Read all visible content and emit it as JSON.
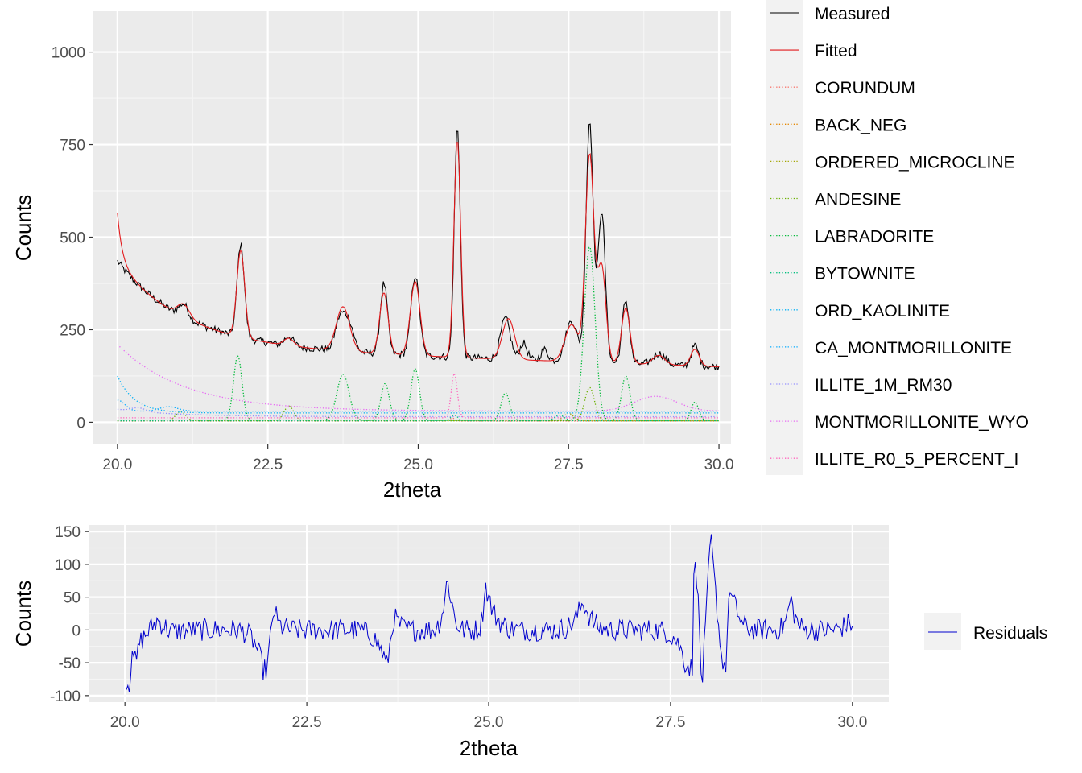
{
  "chart_data": [
    {
      "type": "line",
      "xlabel": "2theta",
      "ylabel": "Counts",
      "xlim": [
        19.6,
        30.2
      ],
      "ylim": [
        -60,
        1110
      ],
      "x_ticks": [
        20.0,
        22.5,
        25.0,
        27.5,
        30.0
      ],
      "x_tick_labels": [
        "20.0",
        "22.5",
        "25.0",
        "27.5",
        "30.0"
      ],
      "y_ticks": [
        0,
        250,
        500,
        750,
        1000
      ],
      "y_tick_labels": [
        "0",
        "250",
        "500",
        "750",
        "1000"
      ],
      "grid": true,
      "legend_position": "right",
      "x_range": [
        20.0,
        30.0
      ],
      "x_step": 0.02,
      "background": {
        "type": "decay",
        "amp": 230,
        "base": 205,
        "rate": 0.9,
        "slope": -5.5
      },
      "series": [
        {
          "name": "Measured",
          "color": "#000000",
          "style": "solid",
          "noise": 10,
          "peaks": [
            {
              "center": 21.1,
              "height": 35,
              "width": 0.08
            },
            {
              "center": 22.05,
              "height": 250,
              "width": 0.06
            },
            {
              "center": 22.85,
              "height": 25,
              "width": 0.07
            },
            {
              "center": 23.7,
              "height": 85,
              "width": 0.08
            },
            {
              "center": 23.85,
              "height": 75,
              "width": 0.08
            },
            {
              "center": 24.43,
              "height": 190,
              "width": 0.06
            },
            {
              "center": 24.95,
              "height": 215,
              "width": 0.07
            },
            {
              "center": 25.65,
              "height": 620,
              "width": 0.05
            },
            {
              "center": 26.45,
              "height": 110,
              "width": 0.08
            },
            {
              "center": 26.75,
              "height": 45,
              "width": 0.06
            },
            {
              "center": 27.1,
              "height": 30,
              "width": 0.06
            },
            {
              "center": 27.55,
              "height": 110,
              "width": 0.1
            },
            {
              "center": 27.85,
              "height": 650,
              "width": 0.06
            },
            {
              "center": 28.05,
              "height": 410,
              "width": 0.06
            },
            {
              "center": 28.45,
              "height": 170,
              "width": 0.06
            },
            {
              "center": 29.0,
              "height": 30,
              "width": 0.1
            },
            {
              "center": 29.6,
              "height": 55,
              "width": 0.06
            }
          ]
        },
        {
          "name": "Fitted",
          "color": "#e31a1c",
          "style": "solid",
          "noise": 0,
          "peaks": [
            {
              "center": 21.1,
              "height": 35,
              "width": 0.1
            },
            {
              "center": 22.05,
              "height": 235,
              "width": 0.065
            },
            {
              "center": 22.85,
              "height": 20,
              "width": 0.08
            },
            {
              "center": 23.75,
              "height": 120,
              "width": 0.11
            },
            {
              "center": 24.43,
              "height": 165,
              "width": 0.07
            },
            {
              "center": 24.95,
              "height": 200,
              "width": 0.08
            },
            {
              "center": 25.65,
              "height": 590,
              "width": 0.055
            },
            {
              "center": 26.5,
              "height": 110,
              "width": 0.1
            },
            {
              "center": 27.55,
              "height": 100,
              "width": 0.11
            },
            {
              "center": 27.85,
              "height": 560,
              "width": 0.07
            },
            {
              "center": 28.05,
              "height": 260,
              "width": 0.07
            },
            {
              "center": 28.45,
              "height": 150,
              "width": 0.07
            },
            {
              "center": 29.0,
              "height": 25,
              "width": 0.1
            },
            {
              "center": 29.6,
              "height": 45,
              "width": 0.07
            }
          ]
        },
        {
          "name": "CORUNDUM",
          "color": "#f8766d",
          "style": "dotted",
          "base": 3,
          "decay": 0,
          "peaks": [
            {
              "center": 25.57,
              "height": 8,
              "width": 0.05
            }
          ]
        },
        {
          "name": "BACK_NEG",
          "color": "#e58700",
          "style": "dotted",
          "base": 5,
          "decay": 0,
          "peaks": []
        },
        {
          "name": "ORDERED_MICROCLINE",
          "color": "#a3a500",
          "style": "dotted",
          "base": 4,
          "decay": 0,
          "peaks": [
            {
              "center": 27.5,
              "height": 20,
              "width": 0.08
            }
          ]
        },
        {
          "name": "ANDESINE",
          "color": "#6bb100",
          "style": "dotted",
          "base": 4,
          "decay": 0,
          "peaks": [
            {
              "center": 21.05,
              "height": 25,
              "width": 0.08
            },
            {
              "center": 22.85,
              "height": 40,
              "width": 0.08
            },
            {
              "center": 27.85,
              "height": 90,
              "width": 0.08
            }
          ]
        },
        {
          "name": "LABRADORITE",
          "color": "#00ba38",
          "style": "dotted",
          "base": 5,
          "decay": 0,
          "peaks": [
            {
              "center": 22.0,
              "height": 175,
              "width": 0.07
            },
            {
              "center": 23.75,
              "height": 125,
              "width": 0.1
            },
            {
              "center": 24.45,
              "height": 100,
              "width": 0.07
            },
            {
              "center": 24.95,
              "height": 140,
              "width": 0.07
            },
            {
              "center": 26.45,
              "height": 75,
              "width": 0.07
            },
            {
              "center": 27.85,
              "height": 470,
              "width": 0.09
            },
            {
              "center": 28.45,
              "height": 120,
              "width": 0.07
            },
            {
              "center": 29.6,
              "height": 50,
              "width": 0.06
            }
          ]
        },
        {
          "name": "BYTOWNITE",
          "color": "#00bf7d",
          "style": "dotted",
          "base": 4,
          "decay": 0,
          "peaks": [
            {
              "center": 25.6,
              "height": 15,
              "width": 0.06
            },
            {
              "center": 27.35,
              "height": 15,
              "width": 0.08
            }
          ]
        },
        {
          "name": "ORD_KAOLINITE",
          "color": "#00b0f6",
          "style": "dotted",
          "base": 25,
          "decay": 100,
          "rate": 3.5,
          "peaks": []
        },
        {
          "name": "CA_MONTMORILLONITE",
          "color": "#00a9ff",
          "style": "dotted",
          "base": 30,
          "decay": 0,
          "peaks": [
            {
              "center": 20.0,
              "height": 30,
              "width": 0.12
            },
            {
              "center": 20.85,
              "height": 12,
              "width": 0.15
            }
          ]
        },
        {
          "name": "ILLITE_1M_RM30",
          "color": "#9590ff",
          "style": "dotted",
          "base": 15,
          "decay": 20,
          "rate": 1.0,
          "peaks": [
            {
              "center": 20.35,
              "height": 10,
              "width": 0.12
            }
          ]
        },
        {
          "name": "MONTMORILLONITE_WYO",
          "color": "#e76bf3",
          "style": "dotted",
          "base": 30,
          "decay": 180,
          "rate": 0.9,
          "peaks": [
            {
              "center": 28.95,
              "height": 40,
              "width": 0.35
            }
          ]
        },
        {
          "name": "ILLITE_R0_5_PERCENT_I",
          "color": "#ff62bc",
          "style": "dotted",
          "base": 12,
          "decay": 0,
          "peaks": [
            {
              "center": 25.6,
              "height": 120,
              "width": 0.05
            }
          ]
        }
      ]
    },
    {
      "type": "line",
      "xlabel": "2theta",
      "ylabel": "Counts",
      "xlim": [
        20.0,
        30.0
      ],
      "ylim": [
        -110,
        160
      ],
      "x_ticks": [
        20.0,
        22.5,
        25.0,
        27.5,
        30.0
      ],
      "x_tick_labels": [
        "20.0",
        "22.5",
        "25.0",
        "27.5",
        "30.0"
      ],
      "y_ticks": [
        -100,
        -50,
        0,
        50,
        100,
        150
      ],
      "y_tick_labels": [
        "-100",
        "-50",
        "0",
        "50",
        "100",
        "150"
      ],
      "grid": true,
      "legend_position": "right",
      "series": [
        {
          "name": "Residuals",
          "color": "#0000cd",
          "style": "solid",
          "x_step": 0.02,
          "noise": 17,
          "anchors": [
            [
              20.03,
              -75
            ],
            [
              20.06,
              -90
            ],
            [
              20.1,
              -20
            ],
            [
              20.15,
              -55
            ],
            [
              20.2,
              -20
            ],
            [
              20.3,
              -5
            ],
            [
              20.45,
              15
            ],
            [
              20.6,
              0
            ],
            [
              21.9,
              -60
            ],
            [
              21.95,
              -62
            ],
            [
              22.05,
              35
            ],
            [
              22.1,
              10
            ],
            [
              23.6,
              -55
            ],
            [
              23.7,
              20
            ],
            [
              24.43,
              78
            ],
            [
              24.55,
              10
            ],
            [
              24.95,
              70
            ],
            [
              25.05,
              30
            ],
            [
              26.3,
              45
            ],
            [
              27.7,
              -50
            ],
            [
              27.8,
              -60
            ],
            [
              27.83,
              140
            ],
            [
              27.88,
              40
            ],
            [
              27.93,
              -90
            ],
            [
              28.0,
              40
            ],
            [
              28.05,
              145
            ],
            [
              28.1,
              80
            ],
            [
              28.2,
              -40
            ],
            [
              28.27,
              -60
            ],
            [
              28.3,
              60
            ],
            [
              28.5,
              5
            ],
            [
              29.15,
              50
            ],
            [
              29.95,
              10
            ]
          ]
        }
      ]
    }
  ]
}
